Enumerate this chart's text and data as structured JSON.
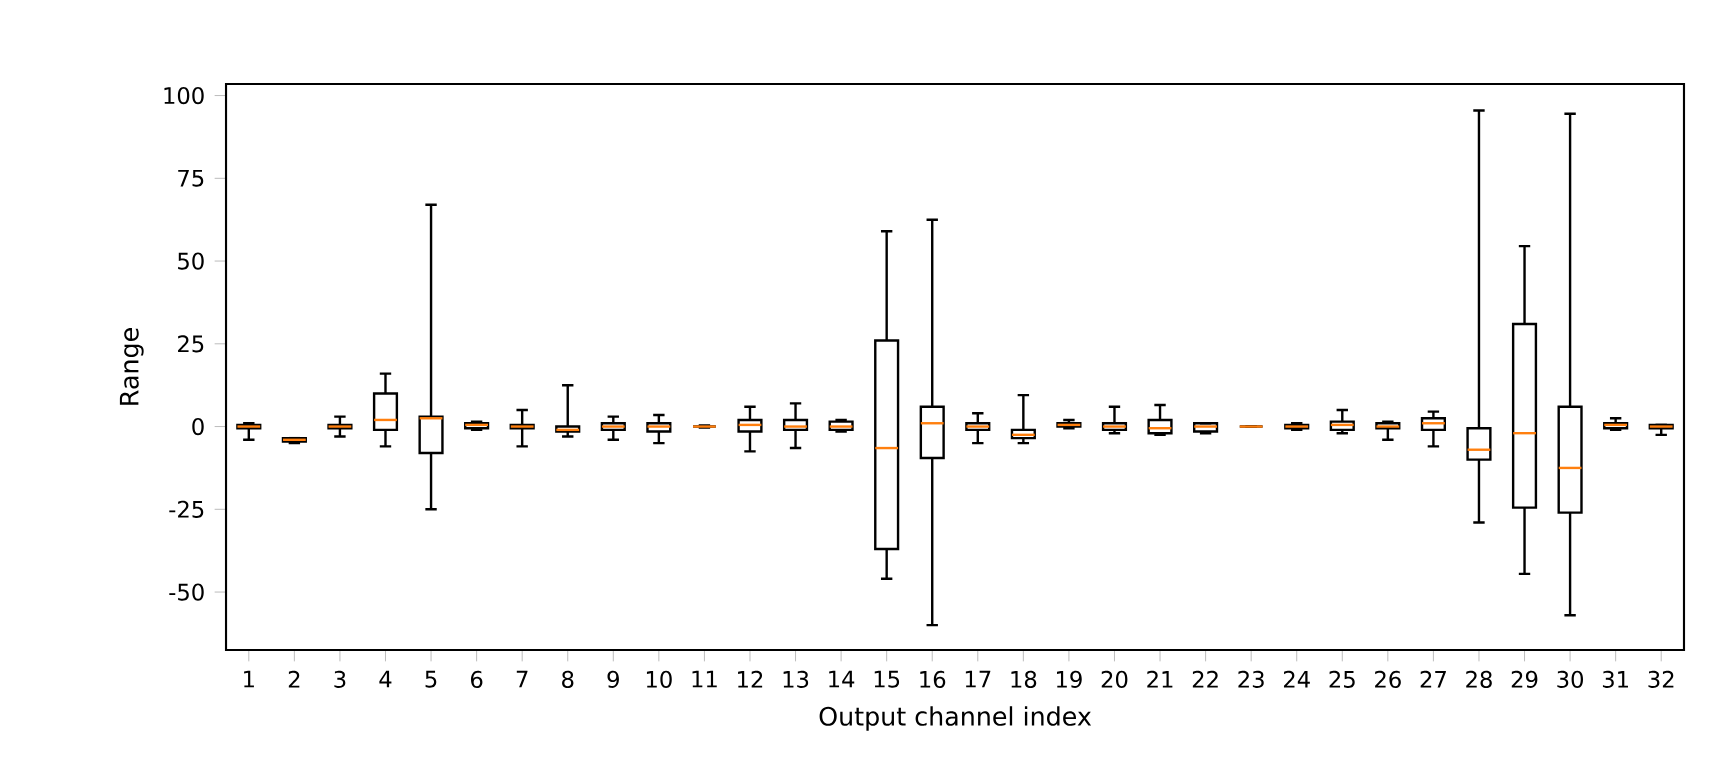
{
  "chart_data": {
    "type": "box",
    "xlabel": "Output channel index",
    "ylabel": "Range",
    "categories": [
      "1",
      "2",
      "3",
      "4",
      "5",
      "6",
      "7",
      "8",
      "9",
      "10",
      "11",
      "12",
      "13",
      "14",
      "15",
      "16",
      "17",
      "18",
      "19",
      "20",
      "21",
      "22",
      "23",
      "24",
      "25",
      "26",
      "27",
      "28",
      "29",
      "30",
      "31",
      "32"
    ],
    "color": "#000000",
    "boxes": [
      {
        "low": -4,
        "q1": -0.5,
        "median": 0,
        "q3": 0.5,
        "high": 1
      },
      {
        "low": -5,
        "q1": -4.5,
        "median": -4,
        "q3": -3.5,
        "high": -3.5
      },
      {
        "low": -3,
        "q1": -0.5,
        "median": 0,
        "q3": 0.5,
        "high": 3
      },
      {
        "low": -6,
        "q1": -1,
        "median": 2,
        "q3": 10,
        "high": 16
      },
      {
        "low": -25,
        "q1": -8,
        "median": 2.5,
        "q3": 3,
        "high": 67
      },
      {
        "low": -1,
        "q1": -0.5,
        "median": 0.5,
        "q3": 1,
        "high": 1.5
      },
      {
        "low": -6,
        "q1": -0.5,
        "median": 0,
        "q3": 0.5,
        "high": 5
      },
      {
        "low": -3,
        "q1": -1.5,
        "median": -1,
        "q3": 0,
        "high": 12.5
      },
      {
        "low": -4,
        "q1": -1,
        "median": 0,
        "q3": 1,
        "high": 3
      },
      {
        "low": -5,
        "q1": -1.5,
        "median": 0,
        "q3": 1,
        "high": 3.5
      },
      {
        "low": -0.3,
        "q1": 0,
        "median": 0,
        "q3": 0,
        "high": 0.3
      },
      {
        "low": -7.5,
        "q1": -1.5,
        "median": 0.5,
        "q3": 2,
        "high": 6
      },
      {
        "low": -6.5,
        "q1": -1,
        "median": 0,
        "q3": 2,
        "high": 7
      },
      {
        "low": -1.5,
        "q1": -1,
        "median": 0,
        "q3": 1.5,
        "high": 2
      },
      {
        "low": -46,
        "q1": -37,
        "median": -6.5,
        "q3": 26,
        "high": 59
      },
      {
        "low": -60,
        "q1": -9.5,
        "median": 1,
        "q3": 6,
        "high": 62.5
      },
      {
        "low": -5,
        "q1": -1,
        "median": 0,
        "q3": 1,
        "high": 4
      },
      {
        "low": -5,
        "q1": -3.5,
        "median": -2.5,
        "q3": -1,
        "high": 9.5
      },
      {
        "low": -0.5,
        "q1": 0,
        "median": 0.5,
        "q3": 1,
        "high": 2
      },
      {
        "low": -2,
        "q1": -1,
        "median": 0,
        "q3": 1,
        "high": 6
      },
      {
        "low": -2.5,
        "q1": -2,
        "median": -0.5,
        "q3": 2,
        "high": 6.5
      },
      {
        "low": -2,
        "q1": -1.5,
        "median": 0,
        "q3": 1,
        "high": 1
      },
      {
        "low": 0,
        "q1": 0,
        "median": 0,
        "q3": 0,
        "high": 0
      },
      {
        "low": -1,
        "q1": -0.5,
        "median": 0,
        "q3": 0.5,
        "high": 1
      },
      {
        "low": -2,
        "q1": -1,
        "median": 0.5,
        "q3": 1.5,
        "high": 5
      },
      {
        "low": -4,
        "q1": -0.5,
        "median": 0,
        "q3": 1,
        "high": 1.5
      },
      {
        "low": -6,
        "q1": -1,
        "median": 1,
        "q3": 2.5,
        "high": 4.5
      },
      {
        "low": -29,
        "q1": -10,
        "median": -7,
        "q3": -0.5,
        "high": 95.5
      },
      {
        "low": -44.5,
        "q1": -24.5,
        "median": -2,
        "q3": 31,
        "high": 54.5
      },
      {
        "low": -57,
        "q1": -26,
        "median": -12.5,
        "q3": 6,
        "high": 94.5
      },
      {
        "low": -1,
        "q1": -0.5,
        "median": 0.5,
        "q3": 1,
        "high": 2.5
      },
      {
        "low": -2.5,
        "q1": -0.5,
        "median": 0,
        "q3": 0.5,
        "high": 0.5
      }
    ],
    "ylim": [
      -67.5,
      103.5
    ],
    "yticks": [
      -50,
      -25,
      0,
      25,
      50,
      75,
      100
    ]
  }
}
